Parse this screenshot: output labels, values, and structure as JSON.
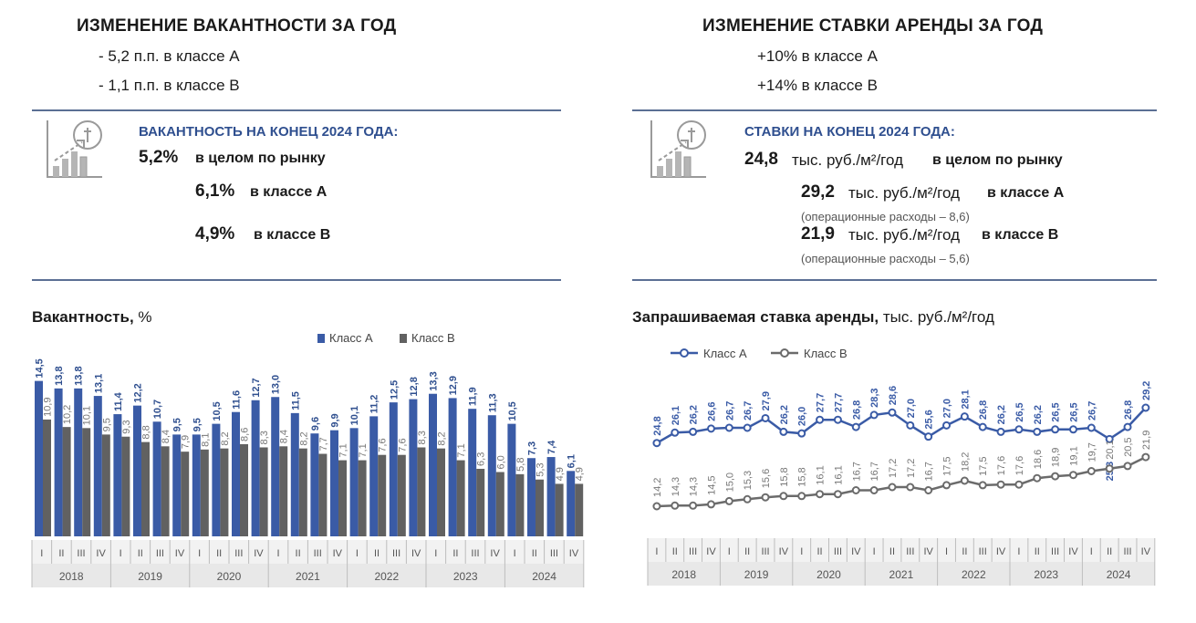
{
  "left": {
    "heading": "ИЗМЕНЕНИЕ ВАКАНТНОСТИ ЗА ГОД",
    "changes": [
      "- 5,2 п.п. в классе А",
      "- 1,1 п.п. в классе В"
    ],
    "kpi_heading": "ВАКАНТНОСТЬ НА КОНЕЦ 2024 ГОДА:",
    "kpi": [
      {
        "value": "5,2%",
        "label": "в целом по рынку"
      },
      {
        "value": "6,1%",
        "label": "в классе А"
      },
      {
        "value": "4,9%",
        "label": "в классе В"
      }
    ],
    "icon": "growth-chart-icon"
  },
  "right": {
    "heading": "ИЗМЕНЕНИЕ СТАВКИ АРЕНДЫ ЗА ГОД",
    "changes": [
      "+10% в классе А",
      "+14% в классе В"
    ],
    "kpi_heading": "СТАВКИ НА КОНЕЦ 2024 ГОДА:",
    "kpi": [
      {
        "value": "24,8",
        "unit": "тыс. руб./м²/год",
        "label": "в целом по рынку",
        "note": ""
      },
      {
        "value": "29,2",
        "unit": "тыс. руб./м²/год",
        "label": "в классе А",
        "note": "(операционные расходы – 8,6)"
      },
      {
        "value": "21,9",
        "unit": "тыс. руб./м²/год",
        "label": "в классе В",
        "note": "(операционные расходы – 5,6)"
      }
    ],
    "icon": "growth-chart-icon"
  },
  "chart_data": [
    {
      "type": "bar",
      "title_bold": "Вакантность,",
      "title_rest": " %",
      "quarters": [
        "I",
        "II",
        "III",
        "IV",
        "I",
        "II",
        "III",
        "IV",
        "I",
        "II",
        "III",
        "IV",
        "I",
        "II",
        "III",
        "IV",
        "I",
        "II",
        "III",
        "IV",
        "I",
        "II",
        "III",
        "IV",
        "I",
        "II",
        "III",
        "IV"
      ],
      "years": [
        "2018",
        "2019",
        "2020",
        "2021",
        "2022",
        "2023",
        "2024"
      ],
      "series": [
        {
          "name": "Класс А",
          "color": "#3a5ba6",
          "labels": [
            "14,5",
            "13,8",
            "13,8",
            "13,1",
            "11,4",
            "12,2",
            "10,7",
            "9,5",
            "9,5",
            "10,5",
            "11,6",
            "12,7",
            "13,0",
            "11,5",
            "9,6",
            "9,9",
            "10,1",
            "11,2",
            "12,5",
            "12,8",
            "13,3",
            "12,9",
            "11,9",
            "11,3",
            "10,5",
            "7,3",
            "7,4",
            "6,1"
          ],
          "values": [
            14.5,
            13.8,
            13.8,
            13.1,
            11.4,
            12.2,
            10.7,
            9.5,
            9.5,
            10.5,
            11.6,
            12.7,
            13.0,
            11.5,
            9.6,
            9.9,
            10.1,
            11.2,
            12.5,
            12.8,
            13.3,
            12.9,
            11.9,
            11.3,
            10.5,
            7.3,
            7.4,
            6.1
          ]
        },
        {
          "name": "Класс В",
          "color": "#616161",
          "labels": [
            "10,9",
            "10,2",
            "10,1",
            "9,5",
            "9,3",
            "8,8",
            "8,4",
            "7,9",
            "8,1",
            "8,2",
            "8,6",
            "8,3",
            "8,4",
            "8,2",
            "7,7",
            "7,1",
            "7,1",
            "7,6",
            "7,6",
            "8,3",
            "8,2",
            "7,1",
            "6,3",
            "6,0",
            "5,8",
            "5,3",
            "4,9",
            "4,9"
          ],
          "values": [
            10.9,
            10.2,
            10.1,
            9.5,
            9.3,
            8.8,
            8.4,
            7.9,
            8.1,
            8.2,
            8.6,
            8.3,
            8.4,
            8.2,
            7.7,
            7.1,
            7.1,
            7.6,
            7.6,
            8.3,
            8.2,
            7.1,
            6.3,
            6.0,
            5.8,
            5.3,
            4.9,
            4.9
          ]
        }
      ],
      "ylim": [
        0,
        16
      ]
    },
    {
      "type": "line",
      "title_bold": "Запрашиваемая ставка аренды,",
      "title_rest": " тыс. руб./м²/год",
      "quarters": [
        "I",
        "II",
        "III",
        "IV",
        "I",
        "II",
        "III",
        "IV",
        "I",
        "II",
        "III",
        "IV",
        "I",
        "II",
        "III",
        "IV",
        "I",
        "II",
        "III",
        "IV",
        "I",
        "II",
        "III",
        "IV",
        "I",
        "II",
        "III",
        "IV"
      ],
      "years": [
        "2018",
        "2019",
        "2020",
        "2021",
        "2022",
        "2023",
        "2024"
      ],
      "series": [
        {
          "name": "Класс А",
          "color": "#3a5ba6",
          "labels": [
            "24,8",
            "26,1",
            "26,2",
            "26,6",
            "26,7",
            "26,7",
            "27,9",
            "26,2",
            "26,0",
            "27,7",
            "27,7",
            "26,8",
            "28,3",
            "28,6",
            "27,0",
            "25,6",
            "27,0",
            "28,1",
            "26,8",
            "26,2",
            "26,5",
            "26,2",
            "26,5",
            "26,5",
            "26,7",
            "25,3",
            "26,8",
            "29,2"
          ],
          "values": [
            24.8,
            26.1,
            26.2,
            26.6,
            26.7,
            26.7,
            27.9,
            26.2,
            26.0,
            27.7,
            27.7,
            26.8,
            28.3,
            28.6,
            27.0,
            25.6,
            27.0,
            28.1,
            26.8,
            26.2,
            26.5,
            26.2,
            26.5,
            26.5,
            26.7,
            25.3,
            26.8,
            29.2
          ]
        },
        {
          "name": "Класс В",
          "color": "#6b6b6b",
          "labels": [
            "14,2",
            "14,3",
            "14,3",
            "14,5",
            "15,0",
            "15,3",
            "15,6",
            "15,8",
            "15,8",
            "16,1",
            "16,1",
            "16,7",
            "16,7",
            "17,2",
            "17,2",
            "16,7",
            "17,5",
            "18,2",
            "17,5",
            "17,6",
            "17,6",
            "18,6",
            "18,9",
            "19,1",
            "19,7",
            "20,1",
            "20,5",
            "21,9"
          ],
          "values": [
            14.2,
            14.3,
            14.3,
            14.5,
            15.0,
            15.3,
            15.6,
            15.8,
            15.8,
            16.1,
            16.1,
            16.7,
            16.7,
            17.2,
            17.2,
            16.7,
            17.5,
            18.2,
            17.5,
            17.6,
            17.6,
            18.6,
            18.9,
            19.1,
            19.7,
            20.1,
            20.5,
            21.9
          ]
        }
      ],
      "ylim": [
        10,
        31
      ]
    }
  ]
}
